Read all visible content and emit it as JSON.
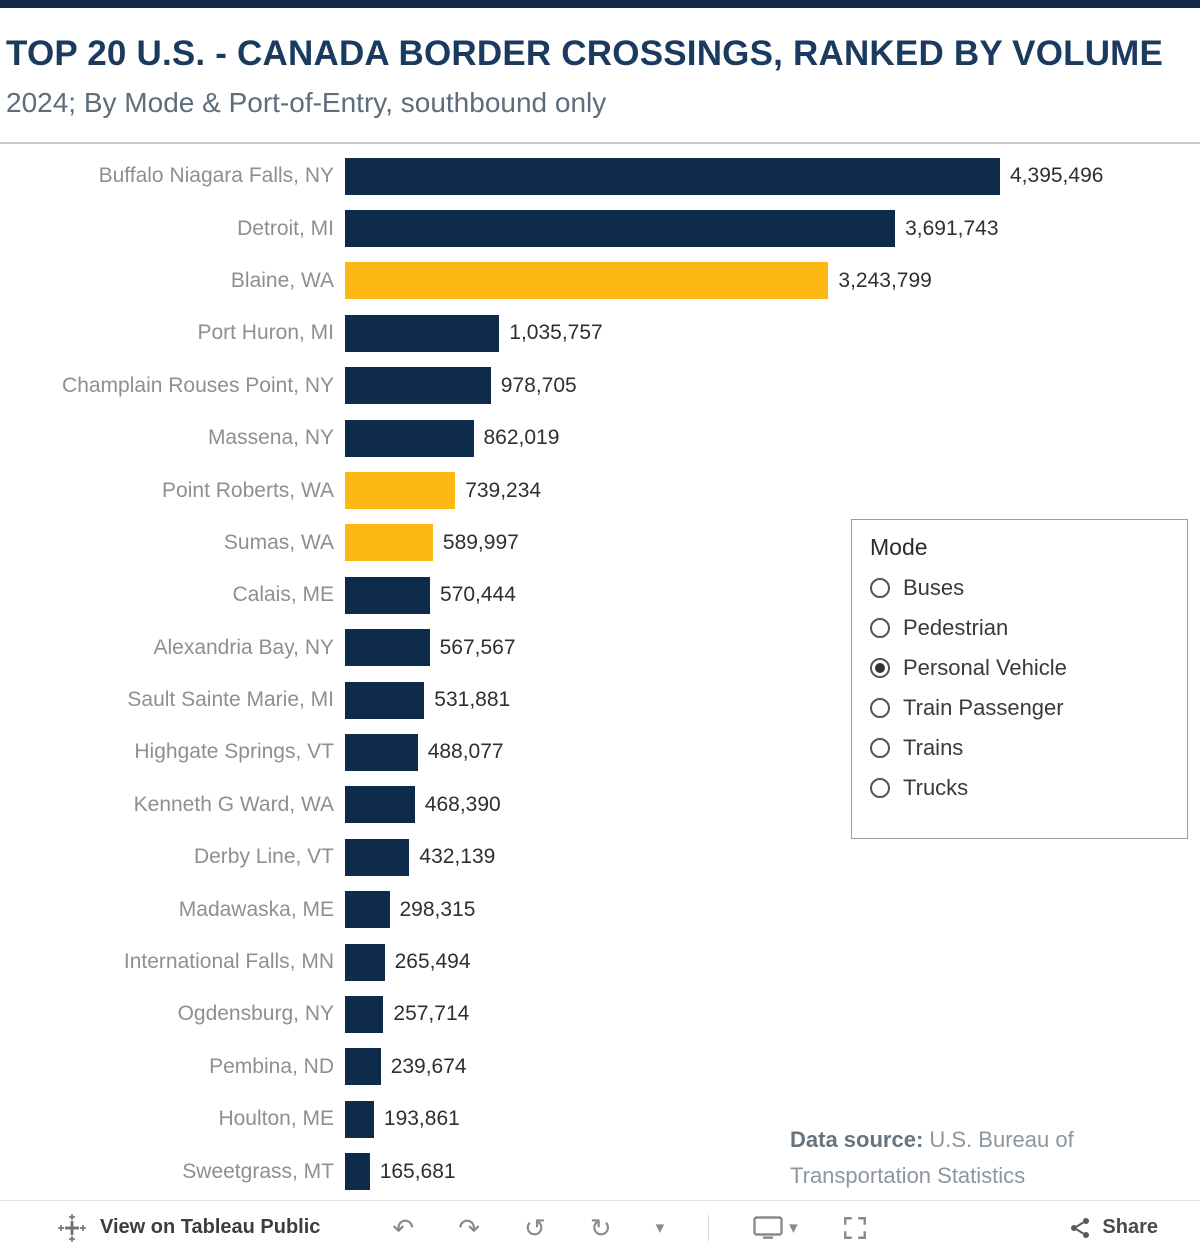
{
  "title": "TOP 20 U.S. - CANADA BORDER CROSSINGS, RANKED BY VOLUME",
  "subtitle": "2024; By Mode & Port-of-Entry, southbound only",
  "chart_data": {
    "type": "bar",
    "orientation": "horizontal",
    "title": "TOP 20 U.S. - CANADA BORDER CROSSINGS, RANKED BY VOLUME",
    "subtitle": "2024; By Mode & Port-of-Entry, southbound only",
    "categories": [
      "Buffalo Niagara Falls, NY",
      "Detroit, MI",
      "Blaine, WA",
      "Port Huron, MI",
      "Champlain Rouses Point, NY",
      "Massena, NY",
      "Point Roberts, WA",
      "Sumas, WA",
      "Calais, ME",
      "Alexandria Bay, NY",
      "Sault Sainte Marie, MI",
      "Highgate Springs, VT",
      "Kenneth G Ward, WA",
      "Derby Line, VT",
      "Madawaska, ME",
      "International Falls, MN",
      "Ogdensburg, NY",
      "Pembina, ND",
      "Houlton, ME",
      "Sweetgrass, MT"
    ],
    "values": [
      4395496,
      3691743,
      3243799,
      1035757,
      978705,
      862019,
      739234,
      589997,
      570444,
      567567,
      531881,
      488077,
      468390,
      432139,
      298315,
      265494,
      257714,
      239674,
      193861,
      165681
    ],
    "value_labels": [
      "4,395,496",
      "3,691,743",
      "3,243,799",
      "1,035,757",
      "978,705",
      "862,019",
      "739,234",
      "589,997",
      "570,444",
      "567,567",
      "531,881",
      "488,077",
      "468,390",
      "432,139",
      "298,315",
      "265,494",
      "257,714",
      "239,674",
      "193,861",
      "165,681"
    ],
    "colors": {
      "default": "#0f2b4c",
      "highlight": "#fdb813"
    },
    "color_keys": [
      "default",
      "default",
      "highlight",
      "default",
      "default",
      "default",
      "highlight",
      "highlight",
      "default",
      "default",
      "default",
      "default",
      "default",
      "default",
      "default",
      "default",
      "default",
      "default",
      "default",
      "default"
    ],
    "xlim": [
      0,
      4600000
    ],
    "grid": false,
    "legend": "none"
  },
  "mode_filter": {
    "title": "Mode",
    "options": [
      {
        "label": "Buses",
        "selected": false
      },
      {
        "label": "Pedestrian",
        "selected": false
      },
      {
        "label": "Personal Vehicle",
        "selected": true
      },
      {
        "label": "Train Passenger",
        "selected": false
      },
      {
        "label": "Trains",
        "selected": false
      },
      {
        "label": "Trucks",
        "selected": false
      }
    ]
  },
  "data_source": {
    "label": "Data source:",
    "text": "U.S. Bureau of Transportation Statistics"
  },
  "toolbar": {
    "view_label": "View on Tableau Public",
    "share_label": "Share",
    "icons": {
      "undo": "↶",
      "redo": "↷",
      "replay": "↺",
      "refresh": "↻",
      "caret": "▾",
      "device_caret": "▾"
    }
  }
}
